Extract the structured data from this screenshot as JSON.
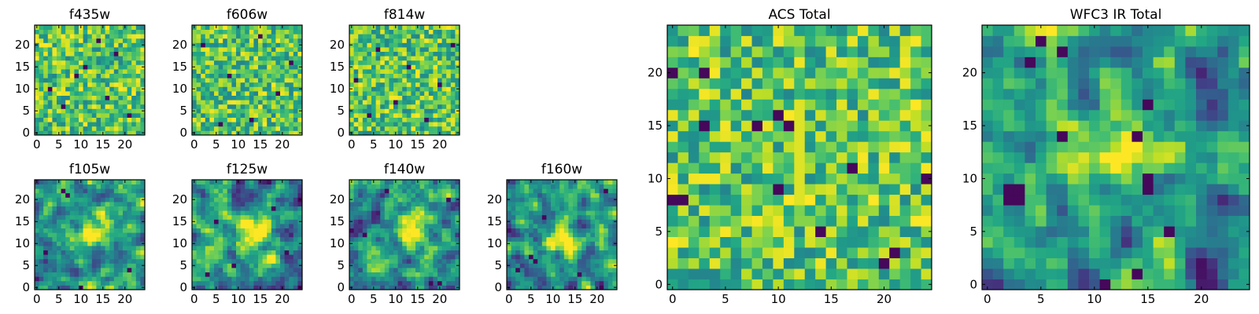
{
  "figure": {
    "description_free": true
  },
  "chart_data": [
    {
      "type": "heatmap",
      "id": "f435w",
      "title": "f435w",
      "grid": [
        25,
        25
      ],
      "colormap": "viridis",
      "xlim": [
        0,
        24
      ],
      "ylim": [
        0,
        24
      ],
      "xticks": [
        0,
        5,
        10,
        15,
        20
      ],
      "yticks": [
        0,
        5,
        10,
        15,
        20
      ],
      "xticklabels": [
        "0",
        "5",
        "10",
        "15",
        "20"
      ],
      "yticklabels": [
        "0",
        "5",
        "10",
        "15",
        "20"
      ],
      "seed": 11,
      "style": "noise",
      "dark_points": [
        [
          3,
          10
        ],
        [
          6,
          6
        ],
        [
          9,
          13
        ],
        [
          14,
          21
        ],
        [
          18,
          18
        ],
        [
          21,
          4
        ],
        [
          11,
          15
        ],
        [
          16,
          8
        ]
      ]
    },
    {
      "type": "heatmap",
      "id": "f606w",
      "title": "f606w",
      "grid": [
        25,
        25
      ],
      "colormap": "viridis",
      "xlim": [
        0,
        24
      ],
      "ylim": [
        0,
        24
      ],
      "xticks": [
        0,
        5,
        10,
        15,
        20
      ],
      "yticks": [
        0,
        5,
        10,
        15,
        20
      ],
      "xticklabels": [
        "0",
        "5",
        "10",
        "15",
        "20"
      ],
      "yticklabels": [
        "0",
        "5",
        "10",
        "15",
        "20"
      ],
      "seed": 23,
      "style": "noise",
      "dark_points": [
        [
          2,
          20
        ],
        [
          8,
          13
        ],
        [
          13,
          3
        ],
        [
          19,
          9
        ],
        [
          22,
          16
        ],
        [
          6,
          2
        ],
        [
          15,
          22
        ]
      ]
    },
    {
      "type": "heatmap",
      "id": "f814w",
      "title": "f814w",
      "grid": [
        25,
        25
      ],
      "colormap": "viridis",
      "xlim": [
        0,
        24
      ],
      "ylim": [
        0,
        24
      ],
      "xticks": [
        0,
        5,
        10,
        15,
        20
      ],
      "yticks": [
        0,
        5,
        10,
        15,
        20
      ],
      "xticklabels": [
        "0",
        "5",
        "10",
        "15",
        "20"
      ],
      "yticklabels": [
        "0",
        "5",
        "10",
        "15",
        "20"
      ],
      "seed": 37,
      "style": "noise",
      "dark_points": [
        [
          1,
          12
        ],
        [
          6,
          19
        ],
        [
          10,
          7
        ],
        [
          17,
          3
        ],
        [
          20,
          11
        ],
        [
          23,
          20
        ],
        [
          13,
          15
        ],
        [
          4,
          4
        ]
      ]
    },
    {
      "type": "heatmap",
      "id": "f105w",
      "title": "f105w",
      "grid": [
        25,
        25
      ],
      "colormap": "viridis",
      "xlim": [
        0,
        24
      ],
      "ylim": [
        0,
        24
      ],
      "xticks": [
        0,
        5,
        10,
        15,
        20
      ],
      "yticks": [
        0,
        5,
        10,
        15,
        20
      ],
      "xticklabels": [
        "0",
        "5",
        "10",
        "15",
        "20"
      ],
      "yticklabels": [
        "0",
        "5",
        "10",
        "15",
        "20"
      ],
      "seed": 41,
      "style": "smooth",
      "blob": [
        13,
        13
      ],
      "dark_points": [
        [
          6,
          22
        ],
        [
          7,
          21
        ],
        [
          2,
          8
        ],
        [
          10,
          0
        ],
        [
          21,
          4
        ]
      ]
    },
    {
      "type": "heatmap",
      "id": "f125w",
      "title": "f125w",
      "grid": [
        25,
        25
      ],
      "colormap": "viridis",
      "xlim": [
        0,
        24
      ],
      "ylim": [
        0,
        24
      ],
      "xticks": [
        0,
        5,
        10,
        15,
        20
      ],
      "yticks": [
        0,
        5,
        10,
        15,
        20
      ],
      "xticklabels": [
        "0",
        "5",
        "10",
        "15",
        "20"
      ],
      "yticklabels": [
        "0",
        "5",
        "10",
        "15",
        "20"
      ],
      "seed": 53,
      "style": "smooth",
      "blob": [
        14,
        12
      ],
      "dark_points": [
        [
          5,
          15
        ],
        [
          9,
          5
        ],
        [
          18,
          18
        ],
        [
          21,
          8
        ],
        [
          3,
          3
        ]
      ]
    },
    {
      "type": "heatmap",
      "id": "f140w",
      "title": "f140w",
      "grid": [
        25,
        25
      ],
      "colormap": "viridis",
      "xlim": [
        0,
        24
      ],
      "ylim": [
        0,
        24
      ],
      "xticks": [
        0,
        5,
        10,
        15,
        20
      ],
      "yticks": [
        0,
        5,
        10,
        15,
        20
      ],
      "xticklabels": [
        "0",
        "5",
        "10",
        "15",
        "20"
      ],
      "yticklabels": [
        "0",
        "5",
        "10",
        "15",
        "20"
      ],
      "seed": 67,
      "style": "smooth",
      "blob": [
        14,
        14
      ],
      "dark_points": [
        [
          22,
          20
        ],
        [
          3,
          12
        ],
        [
          20,
          1
        ],
        [
          8,
          22
        ]
      ]
    },
    {
      "type": "heatmap",
      "id": "f160w",
      "title": "f160w",
      "grid": [
        25,
        25
      ],
      "colormap": "viridis",
      "xlim": [
        0,
        24
      ],
      "ylim": [
        0,
        24
      ],
      "xticks": [
        0,
        5,
        10,
        15,
        20
      ],
      "yticks": [
        0,
        5,
        10,
        15,
        20
      ],
      "xticklabels": [
        "0",
        "5",
        "10",
        "15",
        "20"
      ],
      "yticklabels": [
        "0",
        "5",
        "10",
        "15",
        "20"
      ],
      "seed": 79,
      "style": "smooth",
      "blob": [
        12,
        11
      ],
      "dark_points": [
        [
          5,
          7
        ],
        [
          6,
          6
        ],
        [
          16,
          3
        ],
        [
          22,
          22
        ],
        [
          8,
          16
        ],
        [
          2,
          4
        ]
      ]
    },
    {
      "type": "heatmap",
      "id": "acs-total",
      "title": "ACS Total",
      "grid": [
        25,
        25
      ],
      "colormap": "viridis",
      "xlim": [
        0,
        24
      ],
      "ylim": [
        0,
        24
      ],
      "xticks": [
        0,
        5,
        10,
        15,
        20
      ],
      "yticks": [
        0,
        5,
        10,
        15,
        20
      ],
      "xticklabels": [
        "0",
        "5",
        "10",
        "15",
        "20"
      ],
      "yticklabels": [
        "0",
        "5",
        "10",
        "15",
        "20"
      ],
      "seed": 97,
      "style": "noise",
      "bright_line": [
        12,
        8,
        17
      ],
      "dark_points": [
        [
          0,
          20
        ],
        [
          3,
          20
        ],
        [
          3,
          15
        ],
        [
          8,
          15
        ],
        [
          10,
          16
        ],
        [
          11,
          15
        ],
        [
          17,
          11
        ],
        [
          0,
          8
        ],
        [
          1,
          8
        ],
        [
          24,
          10
        ],
        [
          21,
          3
        ],
        [
          20,
          2
        ],
        [
          14,
          5
        ],
        [
          10,
          9
        ]
      ]
    },
    {
      "type": "heatmap",
      "id": "wfc3-ir-total",
      "title": "WFC3 IR Total",
      "grid": [
        25,
        25
      ],
      "colormap": "viridis",
      "xlim": [
        0,
        24
      ],
      "ylim": [
        0,
        24
      ],
      "xticks": [
        0,
        5,
        10,
        15,
        20
      ],
      "yticks": [
        0,
        5,
        10,
        15,
        20
      ],
      "xticklabels": [
        "0",
        "5",
        "10",
        "15",
        "20"
      ],
      "yticklabels": [
        "0",
        "5",
        "10",
        "15",
        "20"
      ],
      "seed": 131,
      "style": "smooth",
      "blob": [
        13,
        13
      ],
      "dark_points": [
        [
          5,
          23
        ],
        [
          7,
          22
        ],
        [
          4,
          21
        ],
        [
          2,
          9
        ],
        [
          3,
          9
        ],
        [
          2,
          8
        ],
        [
          3,
          8
        ],
        [
          15,
          9
        ],
        [
          15,
          10
        ],
        [
          14,
          1
        ],
        [
          11,
          0
        ],
        [
          7,
          14
        ],
        [
          14,
          14
        ],
        [
          15,
          17
        ],
        [
          17,
          5
        ]
      ]
    }
  ]
}
